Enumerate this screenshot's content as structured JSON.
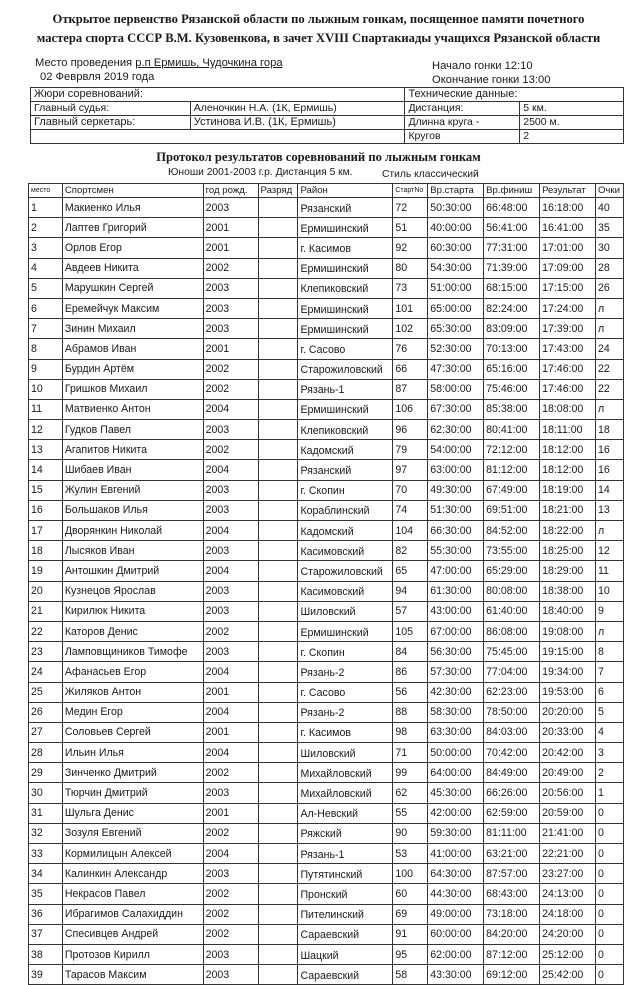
{
  "header": {
    "title_line1": "Открытое первенство Рязанской области по лыжным гонкам, посященное памяти почетного",
    "title_line2": "мастера спорта СССР В.М. Кузовенкова, в зачет XVIII Спартакиады учащихся Рязанской области",
    "venue_label": "Место проведения",
    "venue": "р.п Ермишь, Чудочкина гора",
    "date": "02  Феврвля  2019 года",
    "start_time": "Начало гонки 12:10",
    "end_time": "Окончание гонки   13:00"
  },
  "jury": {
    "heading": "Жюри соревнований:",
    "chief_judge_label": "Главный судья:",
    "chief_judge": "Аленочкин Н.А. (1К, Ермишь)",
    "chief_secretary_label": "Главный серкетарь:",
    "chief_secretary": "Устинова И.В. (1К, Ермишь)"
  },
  "technical": {
    "heading": "Технические данные:",
    "distance_label": "Дистанция:",
    "distance": "5 км.",
    "lap_label": "Длинна круга -",
    "lap": "2500 м.",
    "laps_label": "Кругов",
    "laps": "2"
  },
  "protocol": {
    "title": "Протокол результатов соревнований по лыжным гонкам",
    "group": "Юноши 2001-2003 г.р.   Дистанция 5 км.",
    "style": "Стиль классический"
  },
  "table": {
    "columns": [
      "место",
      "Спортсмен",
      "год рожд.",
      "Разряд",
      "Район",
      "СтартNo",
      "Вр.старта",
      "Вр.финиш",
      "Результат",
      "Очки"
    ],
    "rows": [
      [
        "1",
        "Макиенко Илья",
        "2003",
        "",
        "Рязанский",
        "72",
        "50:30:00",
        "66:48:00",
        "16:18:00",
        "40"
      ],
      [
        "2",
        "Лаптев Григорий",
        "2001",
        "",
        "Ермишинский",
        "51",
        "40:00:00",
        "56:41:00",
        "16:41:00",
        "35"
      ],
      [
        "3",
        "Орлов Егор",
        "2001",
        "",
        "г. Касимов",
        "92",
        "60:30:00",
        "77:31:00",
        "17:01:00",
        "30"
      ],
      [
        "4",
        "Авдеев Никита",
        "2002",
        "",
        "Ермишинский",
        "80",
        "54:30:00",
        "71:39:00",
        "17:09:00",
        "28"
      ],
      [
        "5",
        "Марушкин Сергей",
        "2003",
        "",
        "Клепиковский",
        "73",
        "51:00:00",
        "68:15:00",
        "17:15:00",
        "26"
      ],
      [
        "6",
        "Еремейчук Максим",
        "2003",
        "",
        "Ермишинский",
        "101",
        "65:00:00",
        "82:24:00",
        "17:24:00",
        "л"
      ],
      [
        "7",
        "Зинин Михаил",
        "2003",
        "",
        "Ермишинский",
        "102",
        "65:30:00",
        "83:09:00",
        "17:39:00",
        "л"
      ],
      [
        "8",
        "Абрамов Иван",
        "2001",
        "",
        "г. Сасово",
        "76",
        "52:30:00",
        "70:13:00",
        "17:43:00",
        "24"
      ],
      [
        "9",
        "Бурдин Артём",
        "2002",
        "",
        "Старожиловский",
        "66",
        "47:30:00",
        "65:16:00",
        "17:46:00",
        "22"
      ],
      [
        "10",
        "Гришков Михаил",
        "2002",
        "",
        "Рязань-1",
        "87",
        "58:00:00",
        "75:46:00",
        "17:46:00",
        "22"
      ],
      [
        "11",
        "Матвиенко Антон",
        "2004",
        "",
        "Ермишинский",
        "106",
        "67:30:00",
        "85:38:00",
        "18:08:00",
        "л"
      ],
      [
        "12",
        "Гудков Павел",
        "2003",
        "",
        "Клепиковский",
        "96",
        "62:30:00",
        "80:41:00",
        "18:11:00",
        "18"
      ],
      [
        "13",
        "Агапитов Никита",
        "2002",
        "",
        "Кадомский",
        "79",
        "54:00:00",
        "72:12:00",
        "18:12:00",
        "16"
      ],
      [
        "14",
        "Шибаев Иван",
        "2004",
        "",
        "Рязанский",
        "97",
        "63:00:00",
        "81:12:00",
        "18:12:00",
        "16"
      ],
      [
        "15",
        "Жулин Евгений",
        "2003",
        "",
        "г. Скопин",
        "70",
        "49:30:00",
        "67:49:00",
        "18:19:00",
        "14"
      ],
      [
        "16",
        "Большаков Илья",
        "2003",
        "",
        "Кораблинский",
        "74",
        "51:30:00",
        "69:51:00",
        "18:21:00",
        "13"
      ],
      [
        "17",
        "Дворянкин Николай",
        "2004",
        "",
        "Кадомский",
        "104",
        "66:30:00",
        "84:52:00",
        "18:22:00",
        "л"
      ],
      [
        "18",
        "Лысяков Иван",
        "2003",
        "",
        "Касимовский",
        "82",
        "55:30:00",
        "73:55:00",
        "18:25:00",
        "12"
      ],
      [
        "19",
        "Антошкин Дмитрий",
        "2004",
        "",
        "Старожиловский",
        "65",
        "47:00:00",
        "65:29:00",
        "18:29:00",
        "11"
      ],
      [
        "20",
        "Кузнецов Ярослав",
        "2003",
        "",
        "Касимовский",
        "94",
        "61:30:00",
        "80:08:00",
        "18:38:00",
        "10"
      ],
      [
        "21",
        "Кирилюк Никита",
        "2003",
        "",
        "Шиловский",
        "57",
        "43:00:00",
        "61:40:00",
        "18:40:00",
        "9"
      ],
      [
        "22",
        "Каторов Денис",
        "2002",
        "",
        "Ермишинский",
        "105",
        "67:00:00",
        "86:08:00",
        "19:08:00",
        "л"
      ],
      [
        "23",
        "Ламповщиников Тимофе",
        "2003",
        "",
        "г. Скопин",
        "84",
        "56:30:00",
        "75:45:00",
        "19:15:00",
        "8"
      ],
      [
        "24",
        "Афанасьев Егор",
        "2004",
        "",
        "Рязань-2",
        "86",
        "57:30:00",
        "77:04:00",
        "19:34:00",
        "7"
      ],
      [
        "25",
        "Жиляков Антон",
        "2001",
        "",
        "г. Сасово",
        "56",
        "42:30:00",
        "62:23:00",
        "19:53:00",
        "6"
      ],
      [
        "26",
        "Медин Егор",
        "2004",
        "",
        "Рязань-2",
        "88",
        "58:30:00",
        "78:50:00",
        "20:20:00",
        "5"
      ],
      [
        "27",
        "Соловьев Сергей",
        "2001",
        "",
        "г. Касимов",
        "98",
        "63:30:00",
        "84:03:00",
        "20:33:00",
        "4"
      ],
      [
        "28",
        "Ильин Илья",
        "2004",
        "",
        "Шиловский",
        "71",
        "50:00:00",
        "70:42:00",
        "20:42:00",
        "3"
      ],
      [
        "29",
        "Зинченко Дмитрий",
        "2002",
        "",
        "Михайловский",
        "99",
        "64:00:00",
        "84:49:00",
        "20:49:00",
        "2"
      ],
      [
        "30",
        "Тюрчин Дмитрий",
        "2003",
        "",
        "Михайловский",
        "62",
        "45:30:00",
        "66:26:00",
        "20:56:00",
        "1"
      ],
      [
        "31",
        "Шульга Денис",
        "2001",
        "",
        "Ал-Невский",
        "55",
        "42:00:00",
        "62:59:00",
        "20:59:00",
        "0"
      ],
      [
        "32",
        "Зозуля Евгений",
        "2002",
        "",
        "Ряжский",
        "90",
        "59:30:00",
        "81:11:00",
        "21:41:00",
        "0"
      ],
      [
        "33",
        "Кормилицын Алексей",
        "2004",
        "",
        "Рязань-1",
        "53",
        "41:00:00",
        "63:21:00",
        "22:21:00",
        "0"
      ],
      [
        "34",
        "Калинкин Александр",
        "2003",
        "",
        "Путятинский",
        "100",
        "64:30:00",
        "87:57:00",
        "23:27:00",
        "0"
      ],
      [
        "35",
        "Некрасов Павел",
        "2002",
        "",
        "Пронский",
        "60",
        "44:30:00",
        "68:43:00",
        "24:13:00",
        "0"
      ],
      [
        "36",
        "Ибрагимов Салахиддин",
        "2002",
        "",
        "Пителинский",
        "69",
        "49:00:00",
        "73:18:00",
        "24:18:00",
        "0"
      ],
      [
        "37",
        "Спесивцев Андрей",
        "2002",
        "",
        "Сараевский",
        "91",
        "60:00:00",
        "84:20:00",
        "24:20:00",
        "0"
      ],
      [
        "38",
        "Протозов Кирилл",
        "2003",
        "",
        "Шацкий",
        "95",
        "62:00:00",
        "87:12:00",
        "25:12:00",
        "0"
      ],
      [
        "39",
        "Тарасов Максим",
        "2003",
        "",
        "Сараевский",
        "58",
        "43:30:00",
        "69:12:00",
        "25:42:00",
        "0"
      ]
    ]
  }
}
